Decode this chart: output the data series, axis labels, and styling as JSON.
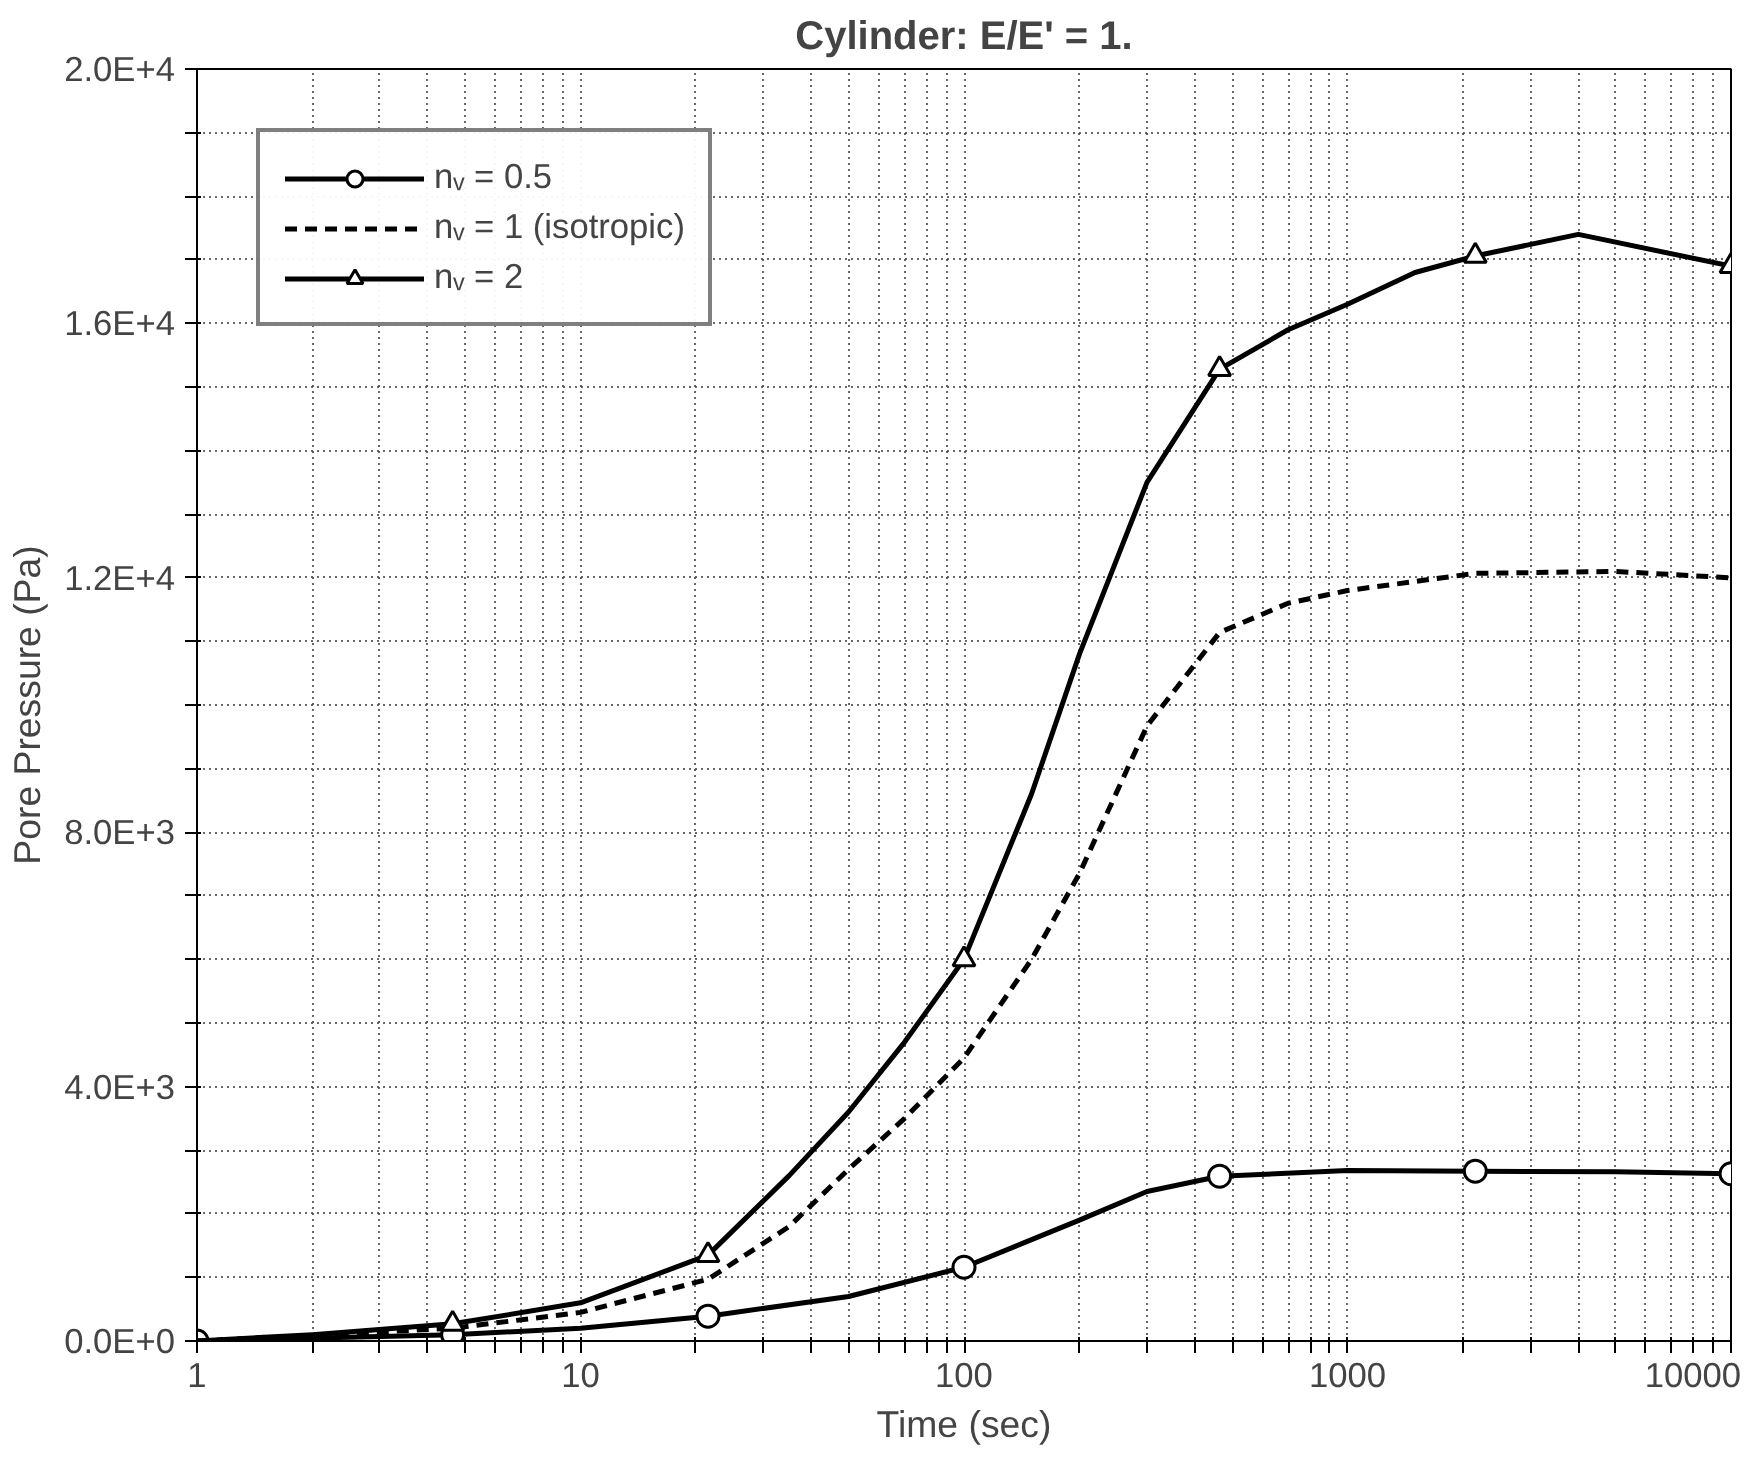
{
  "chart_data": {
    "type": "line",
    "title": "Cylinder: E/E' = 1.",
    "xlabel": "Time (sec)",
    "ylabel": "Pore Pressure (Pa)",
    "log": "x",
    "xlim": [
      1,
      10000
    ],
    "ylim": [
      0,
      20000
    ],
    "xticks": [
      1,
      {
        "value": 2,
        "label": null
      },
      {
        "value": 3,
        "label": null
      },
      {
        "value": 4,
        "label": null
      },
      {
        "value": 5,
        "label": null
      },
      {
        "value": 6,
        "label": null
      },
      {
        "value": 7,
        "label": null
      },
      {
        "value": 8,
        "label": null
      },
      {
        "value": 9,
        "label": null
      },
      10,
      {
        "value": 20,
        "label": null
      },
      {
        "value": 30,
        "label": null
      },
      {
        "value": 40,
        "label": null
      },
      {
        "value": 50,
        "label": null
      },
      {
        "value": 60,
        "label": null
      },
      {
        "value": 70,
        "label": null
      },
      {
        "value": 80,
        "label": null
      },
      {
        "value": 90,
        "label": null
      },
      100,
      {
        "value": 200,
        "label": null
      },
      {
        "value": 300,
        "label": null
      },
      {
        "value": 400,
        "label": null
      },
      {
        "value": 500,
        "label": null
      },
      {
        "value": 600,
        "label": null
      },
      {
        "value": 700,
        "label": null
      },
      {
        "value": 800,
        "label": null
      },
      {
        "value": 900,
        "label": null
      },
      1000,
      {
        "value": 2000,
        "label": null
      },
      {
        "value": 3000,
        "label": null
      },
      {
        "value": 4000,
        "label": null
      },
      {
        "value": 5000,
        "label": null
      },
      {
        "value": 6000,
        "label": null
      },
      {
        "value": 7000,
        "label": null
      },
      {
        "value": 8000,
        "label": null
      },
      {
        "value": 9000,
        "label": null
      },
      10000
    ],
    "yticks": [
      {
        "value": 0,
        "label": "0.0E+0"
      },
      {
        "value": 1000,
        "label": null
      },
      {
        "value": 2000,
        "label": null
      },
      {
        "value": 3000,
        "label": null
      },
      {
        "value": 4000,
        "label": "4.0E+3"
      },
      {
        "value": 5000,
        "label": null
      },
      {
        "value": 6000,
        "label": null
      },
      {
        "value": 7000,
        "label": null
      },
      {
        "value": 8000,
        "label": "8.0E+3"
      },
      {
        "value": 9000,
        "label": null
      },
      {
        "value": 10000,
        "label": null
      },
      {
        "value": 11000,
        "label": null
      },
      {
        "value": 12000,
        "label": "1.2E+4"
      },
      {
        "value": 13000,
        "label": null
      },
      {
        "value": 14000,
        "label": null
      },
      {
        "value": 15000,
        "label": null
      },
      {
        "value": 16000,
        "label": "1.6E+4"
      },
      {
        "value": 17000,
        "label": null
      },
      {
        "value": 18000,
        "label": null
      },
      {
        "value": 19000,
        "label": null
      },
      {
        "value": 20000,
        "label": "2.0E+4"
      }
    ],
    "grid": true,
    "legend": "top left",
    "series": [
      {
        "name": "nᵥ = 0.5",
        "color": "#000000",
        "marker": "none",
        "line_style": "solid",
        "x": [
          1,
          4.64,
          10,
          21.5,
          50,
          100,
          200,
          300,
          464,
          1000,
          2154,
          5000,
          10000
        ],
        "values": [
          0,
          100,
          200,
          390,
          700,
          1160,
          1900,
          2350,
          2590,
          2680,
          2670,
          2660,
          2630
        ]
      },
      {
        "type": "scatter",
        "color": "#000000",
        "marker": "circle",
        "x": [
          1,
          4.64,
          21.5,
          100,
          464,
          2154,
          10000
        ],
        "values": [
          0,
          100,
          390,
          1160,
          2590,
          2670,
          2630
        ]
      },
      {
        "name": "nᵥ = 1 (isotropic)",
        "color": "#000000",
        "marker": "none",
        "line_style": "dashed",
        "x": [
          1,
          4.64,
          10,
          21.5,
          35,
          50,
          70,
          100,
          150,
          200,
          300,
          464,
          700,
          1000,
          2154,
          5000,
          10000
        ],
        "values": [
          0,
          200,
          450,
          970,
          1800,
          2700,
          3500,
          4450,
          6000,
          7350,
          9670,
          11140,
          11600,
          11800,
          12070,
          12100,
          12000
        ]
      },
      {
        "name": "nᵥ = 2",
        "color": "#000000",
        "marker": "none",
        "line_style": "solid",
        "x": [
          1,
          2,
          4.64,
          10,
          21.5,
          35,
          50,
          70,
          100,
          150,
          200,
          300,
          464,
          700,
          1000,
          1500,
          2154,
          4000,
          10000
        ],
        "values": [
          0,
          100,
          270,
          600,
          1350,
          2600,
          3600,
          4700,
          6000,
          8600,
          10800,
          13500,
          15280,
          15900,
          16300,
          16800,
          17060,
          17400,
          16900
        ]
      },
      {
        "type": "scatter",
        "color": "#000000",
        "marker": "triangle",
        "x": [
          4.64,
          21.5,
          100,
          464,
          2154,
          10000
        ],
        "values": [
          270,
          1350,
          6000,
          15280,
          17060,
          16900
        ]
      }
    ]
  }
}
